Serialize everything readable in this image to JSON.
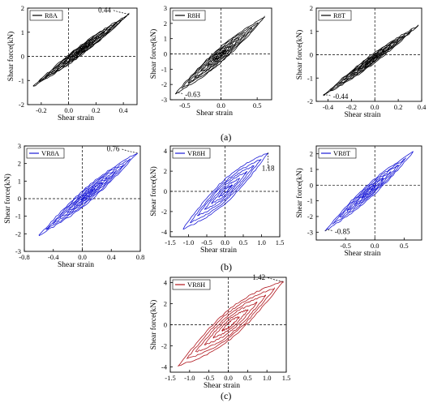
{
  "chart_data": [
    {
      "id": "R8A",
      "type": "line",
      "legend": "R8A",
      "color": "#000000",
      "xlabel": "Shear strain",
      "ylabel": "Shear force(kN)",
      "xlim": [
        -0.3,
        0.5
      ],
      "ylim": [
        -2,
        2
      ],
      "xticks": [
        -0.2,
        0.0,
        0.2,
        0.4
      ],
      "xtick_labels": [
        "-0.2",
        "0.0",
        "0.2",
        "0.4"
      ],
      "yticks": [
        -2,
        -1,
        0,
        1,
        2
      ],
      "ytick_labels": [
        "-2",
        "-1",
        "0",
        "1",
        "2"
      ],
      "annotation": {
        "text": "0.44",
        "x": 0.44,
        "y": 1.75,
        "side": "left"
      },
      "loop": {
        "min": [
          -0.26,
          -1.25
        ],
        "max": [
          0.44,
          1.75
        ],
        "widths": [
          0.05,
          0.11,
          0.18,
          0.26,
          0.34,
          0.42,
          0.5,
          0.58
        ]
      }
    },
    {
      "id": "R8H",
      "type": "line",
      "legend": "R8H",
      "color": "#000000",
      "xlabel": "Shear strain",
      "ylabel": "Shear force(kN)",
      "xlim": [
        -0.7,
        0.7
      ],
      "ylim": [
        -3,
        3
      ],
      "xticks": [
        -0.5,
        0.0,
        0.5
      ],
      "xtick_labels": [
        "-0.5",
        "0.0",
        "0.5"
      ],
      "yticks": [
        -3,
        -2,
        -1,
        0,
        1,
        2,
        3
      ],
      "ytick_labels": [
        "-3",
        "-2",
        "-1",
        "0",
        "1",
        "2",
        "3"
      ],
      "annotation": {
        "text": "-0.63",
        "x": -0.63,
        "y": -2.6,
        "side": "right"
      },
      "loop": {
        "min": [
          -0.63,
          -2.6
        ],
        "max": [
          0.6,
          2.4
        ],
        "widths": [
          0.1,
          0.22,
          0.36,
          0.5,
          0.64,
          0.8,
          0.95
        ]
      }
    },
    {
      "id": "R8T",
      "type": "line",
      "legend": "R8T",
      "color": "#000000",
      "xlabel": "Shear strain",
      "ylabel": "Shear force(kN)",
      "xlim": [
        -0.5,
        0.4
      ],
      "ylim": [
        -2,
        2
      ],
      "xticks": [
        -0.4,
        -0.2,
        0.0,
        0.2,
        0.4
      ],
      "xtick_labels": [
        "-0.4",
        "-0.2",
        "0.0",
        "0.2",
        "0.4"
      ],
      "yticks": [
        -2,
        -1,
        0,
        1,
        2
      ],
      "ytick_labels": [
        "-2",
        "-1",
        "0",
        "1",
        "2"
      ],
      "annotation": {
        "text": "-0.44",
        "x": -0.44,
        "y": -1.75,
        "side": "right"
      },
      "loop": {
        "min": [
          -0.44,
          -1.75
        ],
        "max": [
          0.37,
          1.25
        ],
        "widths": [
          0.05,
          0.12,
          0.2,
          0.3,
          0.4,
          0.5,
          0.6
        ]
      }
    },
    {
      "id": "VR8A",
      "type": "line",
      "legend": "VR8A",
      "color": "#1a1ad6",
      "xlabel": "Shear strain",
      "ylabel": "Shear force(kN)",
      "xlim": [
        -0.8,
        0.8
      ],
      "ylim": [
        -3,
        3
      ],
      "xticks": [
        -0.8,
        -0.4,
        0.0,
        0.4,
        0.8
      ],
      "xtick_labels": [
        "-0.8",
        "-0.4",
        "0.0",
        "0.4",
        "0.8"
      ],
      "yticks": [
        -3,
        -2,
        -1,
        0,
        1,
        2,
        3
      ],
      "ytick_labels": [
        "-3",
        "-2",
        "-1",
        "0",
        "1",
        "2",
        "3"
      ],
      "annotation": {
        "text": "0.76",
        "x": 0.76,
        "y": 2.6,
        "side": "left"
      },
      "loop": {
        "min": [
          -0.6,
          -2.1
        ],
        "max": [
          0.76,
          2.6
        ],
        "widths": [
          0.1,
          0.2,
          0.3,
          0.42,
          0.55,
          0.7,
          0.85
        ]
      }
    },
    {
      "id": "VR8H",
      "type": "line",
      "legend": "VR8H",
      "color": "#1a1ad6",
      "xlabel": "Shear strain",
      "ylabel": "Shear force(kN)",
      "xlim": [
        -1.5,
        1.5
      ],
      "ylim": [
        -4.5,
        4.5
      ],
      "xticks": [
        -1.5,
        -1.0,
        -0.5,
        0.0,
        0.5,
        1.0,
        1.5
      ],
      "xtick_labels": [
        "-1.5",
        "-1.0",
        "-0.5",
        "0.0",
        "0.5",
        "1.0",
        "1.5"
      ],
      "yticks": [
        -4,
        -2,
        0,
        2,
        4
      ],
      "ytick_labels": [
        "-4",
        "-2",
        "0",
        "2",
        "4"
      ],
      "annotation": {
        "text": "1.18",
        "x": 1.18,
        "y": 3.8,
        "side": "below"
      },
      "loop": {
        "min": [
          -1.15,
          -3.7
        ],
        "max": [
          1.18,
          3.8
        ],
        "widths": [
          0.2,
          0.45,
          0.7,
          0.95,
          1.2,
          1.5
        ]
      }
    },
    {
      "id": "VR8T",
      "type": "line",
      "legend": "VR8T",
      "color": "#1a1ad6",
      "xlabel": "Shear strain",
      "ylabel": "Shear force(kN)",
      "xlim": [
        -1.0,
        0.8
      ],
      "ylim": [
        -3.5,
        2.5
      ],
      "xticks": [
        -0.5,
        0.0,
        0.5
      ],
      "xtick_labels": [
        "-0.5",
        "0.0",
        "0.5"
      ],
      "yticks": [
        -3,
        -2,
        -1,
        0,
        1,
        2
      ],
      "ytick_labels": [
        "-3",
        "-2",
        "-1",
        "0",
        "1",
        "2"
      ],
      "annotation": {
        "text": "-0.85",
        "x": -0.85,
        "y": -2.9,
        "side": "right"
      },
      "loop": {
        "min": [
          -0.85,
          -2.9
        ],
        "max": [
          0.65,
          2.1
        ],
        "widths": [
          0.1,
          0.25,
          0.4,
          0.55,
          0.7,
          0.9
        ]
      }
    },
    {
      "id": "VR8H-c",
      "type": "line",
      "legend": "VR8H",
      "color": "#b0151c",
      "xlabel": "Shear strain",
      "ylabel": "Shear force(kN)",
      "xlim": [
        -1.5,
        1.5
      ],
      "ylim": [
        -4.5,
        4.5
      ],
      "xticks": [
        -1.5,
        -1.0,
        -0.5,
        0.0,
        0.5,
        1.0,
        1.5
      ],
      "xtick_labels": [
        "-1.5",
        "-1.0",
        "-0.5",
        "0.0",
        "0.5",
        "1.0",
        "1.5"
      ],
      "yticks": [
        -4,
        -2,
        0,
        2,
        4
      ],
      "ytick_labels": [
        "-4",
        "-2",
        "0",
        "2",
        "4"
      ],
      "annotation": {
        "text": "1.42",
        "x": 1.42,
        "y": 4.1,
        "side": "left"
      },
      "loop": {
        "min": [
          -1.3,
          -3.9
        ],
        "max": [
          1.42,
          4.1
        ],
        "widths": [
          0.3,
          0.6,
          0.9,
          1.2,
          1.5,
          1.8
        ]
      }
    }
  ],
  "captions": {
    "a": "(a)",
    "b": "(b)",
    "c": "(c)"
  }
}
